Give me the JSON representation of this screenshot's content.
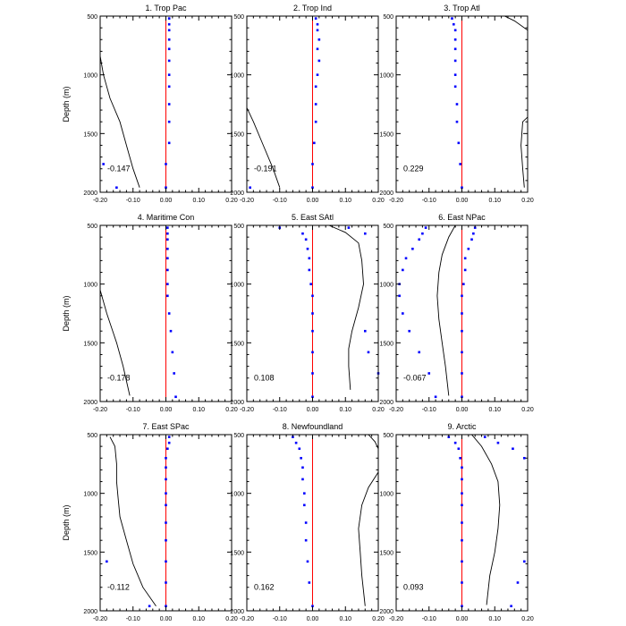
{
  "colors": {
    "zero_line": "#ff0000",
    "dots": "#0000ff",
    "curve": "#000000"
  },
  "shared_axes": {
    "ylabel": "Depth (m)",
    "ylim": [
      2000,
      500
    ],
    "yticks": [
      500,
      1000,
      1500,
      2000
    ],
    "xlim": [
      -0.2,
      0.2
    ],
    "xticks": [
      -0.2,
      -0.1,
      0.0,
      0.1,
      0.2
    ],
    "xtick_labels": [
      "-0.20",
      "-0.10",
      "0.00",
      "0.10",
      "0.20"
    ]
  },
  "chart_data": [
    {
      "type": "scatter",
      "title": "1. Trop Pac",
      "annotation": "-0.147",
      "zero_line": 0,
      "dots": [
        [
          0.01,
          520
        ],
        [
          0.01,
          570
        ],
        [
          0.01,
          620
        ],
        [
          0.01,
          700
        ],
        [
          0.01,
          780
        ],
        [
          0.01,
          880
        ],
        [
          0.01,
          1000
        ],
        [
          0.01,
          1100
        ],
        [
          0.01,
          1250
        ],
        [
          0.01,
          1400
        ],
        [
          0.01,
          1580
        ],
        [
          0.0,
          1760
        ],
        [
          0.0,
          1960
        ],
        [
          -0.19,
          1760
        ],
        [
          -0.15,
          1960
        ]
      ],
      "curve": [
        [
          -0.2,
          840
        ],
        [
          -0.19,
          1000
        ],
        [
          -0.17,
          1200
        ],
        [
          -0.14,
          1400
        ],
        [
          -0.12,
          1600
        ],
        [
          -0.1,
          1800
        ],
        [
          -0.08,
          1960
        ]
      ]
    },
    {
      "type": "scatter",
      "title": "2. Trop Ind",
      "annotation": "-0.191",
      "zero_line": 0,
      "dots": [
        [
          0.01,
          520
        ],
        [
          0.015,
          570
        ],
        [
          0.015,
          620
        ],
        [
          0.02,
          700
        ],
        [
          0.015,
          780
        ],
        [
          0.02,
          880
        ],
        [
          0.015,
          1000
        ],
        [
          0.01,
          1100
        ],
        [
          0.01,
          1250
        ],
        [
          0.01,
          1400
        ],
        [
          0.005,
          1580
        ],
        [
          0.0,
          1760
        ],
        [
          0.0,
          1960
        ],
        [
          -0.19,
          1960
        ]
      ],
      "curve": [
        [
          -0.2,
          1280
        ],
        [
          -0.18,
          1400
        ],
        [
          -0.15,
          1600
        ],
        [
          -0.12,
          1800
        ],
        [
          -0.1,
          1960
        ]
      ]
    },
    {
      "type": "scatter",
      "title": "3. Trop Atl",
      "annotation": "0.229",
      "zero_line": 0,
      "dots": [
        [
          -0.03,
          520
        ],
        [
          -0.025,
          570
        ],
        [
          -0.02,
          620
        ],
        [
          -0.02,
          700
        ],
        [
          -0.02,
          780
        ],
        [
          -0.02,
          880
        ],
        [
          -0.02,
          1000
        ],
        [
          -0.02,
          1100
        ],
        [
          -0.015,
          1250
        ],
        [
          -0.015,
          1400
        ],
        [
          -0.01,
          1580
        ],
        [
          -0.005,
          1760
        ],
        [
          0.0,
          1960
        ]
      ],
      "curve_segments": [
        [
          [
            0.13,
            500
          ],
          [
            0.16,
            540
          ],
          [
            0.2,
            620
          ]
        ],
        [
          [
            0.2,
            1360
          ],
          [
            0.185,
            1400
          ],
          [
            0.18,
            1600
          ],
          [
            0.185,
            1800
          ],
          [
            0.19,
            1960
          ]
        ]
      ]
    },
    {
      "type": "scatter",
      "title": "4. Maritime Con",
      "annotation": "-0.178",
      "zero_line": 0,
      "dots": [
        [
          0.005,
          520
        ],
        [
          0.005,
          570
        ],
        [
          0.005,
          620
        ],
        [
          0.005,
          700
        ],
        [
          0.005,
          780
        ],
        [
          0.005,
          880
        ],
        [
          0.005,
          1000
        ],
        [
          0.005,
          1100
        ],
        [
          0.01,
          1250
        ],
        [
          0.015,
          1400
        ],
        [
          0.02,
          1580
        ],
        [
          0.025,
          1760
        ],
        [
          0.03,
          1960
        ]
      ],
      "curve": [
        [
          -0.2,
          1050
        ],
        [
          -0.18,
          1250
        ],
        [
          -0.15,
          1500
        ],
        [
          -0.13,
          1700
        ],
        [
          -0.11,
          1950
        ]
      ]
    },
    {
      "type": "scatter",
      "title": "5. East SAtl",
      "annotation": "0.108",
      "zero_line": 0,
      "dots": [
        [
          -0.1,
          520
        ],
        [
          -0.03,
          570
        ],
        [
          -0.02,
          620
        ],
        [
          -0.015,
          700
        ],
        [
          -0.01,
          780
        ],
        [
          -0.01,
          880
        ],
        [
          -0.005,
          1000
        ],
        [
          0.0,
          1100
        ],
        [
          0.0,
          1250
        ],
        [
          0.0,
          1400
        ],
        [
          0.0,
          1580
        ],
        [
          0.0,
          1760
        ],
        [
          0.0,
          1960
        ],
        [
          0.11,
          520
        ],
        [
          0.16,
          570
        ],
        [
          0.16,
          1400
        ],
        [
          0.17,
          1580
        ],
        [
          0.2,
          1760
        ]
      ],
      "curve": [
        [
          0.05,
          500
        ],
        [
          0.1,
          560
        ],
        [
          0.14,
          650
        ],
        [
          0.15,
          800
        ],
        [
          0.155,
          1000
        ],
        [
          0.14,
          1200
        ],
        [
          0.12,
          1400
        ],
        [
          0.11,
          1550
        ],
        [
          0.11,
          1700
        ],
        [
          0.115,
          1900
        ]
      ]
    },
    {
      "type": "scatter",
      "title": "6. East NPac",
      "annotation": "-0.067",
      "zero_line": 0,
      "dots": [
        [
          -0.11,
          520
        ],
        [
          -0.12,
          570
        ],
        [
          -0.13,
          620
        ],
        [
          -0.15,
          700
        ],
        [
          -0.17,
          780
        ],
        [
          -0.18,
          880
        ],
        [
          -0.19,
          1000
        ],
        [
          -0.19,
          1100
        ],
        [
          -0.18,
          1250
        ],
        [
          -0.16,
          1400
        ],
        [
          -0.13,
          1580
        ],
        [
          -0.1,
          1760
        ],
        [
          -0.08,
          1960
        ],
        [
          0.04,
          520
        ],
        [
          0.035,
          570
        ],
        [
          0.03,
          620
        ],
        [
          0.02,
          700
        ],
        [
          0.01,
          780
        ],
        [
          0.01,
          880
        ],
        [
          0.005,
          1000
        ],
        [
          0.0,
          1100
        ],
        [
          0.0,
          1250
        ],
        [
          0.0,
          1400
        ],
        [
          0.0,
          1580
        ],
        [
          0.0,
          1760
        ],
        [
          0.0,
          1960
        ]
      ],
      "curve": [
        [
          -0.02,
          500
        ],
        [
          -0.04,
          600
        ],
        [
          -0.06,
          750
        ],
        [
          -0.07,
          900
        ],
        [
          -0.075,
          1100
        ],
        [
          -0.07,
          1300
        ],
        [
          -0.06,
          1500
        ],
        [
          -0.05,
          1700
        ],
        [
          -0.04,
          1950
        ]
      ]
    },
    {
      "type": "scatter",
      "title": "7. East SPac",
      "annotation": "-0.112",
      "zero_line": 0,
      "dots": [
        [
          0.01,
          520
        ],
        [
          0.01,
          570
        ],
        [
          0.005,
          620
        ],
        [
          0.0,
          700
        ],
        [
          0.0,
          780
        ],
        [
          0.0,
          880
        ],
        [
          0.0,
          1000
        ],
        [
          0.0,
          1100
        ],
        [
          0.0,
          1250
        ],
        [
          0.0,
          1400
        ],
        [
          0.0,
          1580
        ],
        [
          0.0,
          1760
        ],
        [
          0.0,
          1960
        ],
        [
          -0.18,
          1580
        ],
        [
          -0.05,
          1960
        ]
      ],
      "curve": [
        [
          -0.17,
          520
        ],
        [
          -0.155,
          600
        ],
        [
          -0.15,
          750
        ],
        [
          -0.15,
          900
        ],
        [
          -0.145,
          1050
        ],
        [
          -0.14,
          1200
        ],
        [
          -0.12,
          1400
        ],
        [
          -0.1,
          1600
        ],
        [
          -0.07,
          1800
        ],
        [
          -0.03,
          1960
        ]
      ]
    },
    {
      "type": "scatter",
      "title": "8. Newfoundland",
      "annotation": "0.162",
      "zero_line": 0,
      "dots": [
        [
          -0.06,
          520
        ],
        [
          -0.05,
          570
        ],
        [
          -0.04,
          620
        ],
        [
          -0.035,
          700
        ],
        [
          -0.03,
          780
        ],
        [
          -0.03,
          880
        ],
        [
          -0.025,
          1000
        ],
        [
          -0.025,
          1100
        ],
        [
          -0.02,
          1250
        ],
        [
          -0.02,
          1400
        ],
        [
          -0.015,
          1580
        ],
        [
          -0.01,
          1760
        ],
        [
          0.0,
          1960
        ]
      ],
      "curve": [
        [
          0.17,
          500
        ],
        [
          0.19,
          560
        ],
        [
          0.2,
          620
        ],
        [
          0.2,
          820
        ],
        [
          0.17,
          950
        ],
        [
          0.15,
          1100
        ],
        [
          0.14,
          1300
        ],
        [
          0.145,
          1500
        ],
        [
          0.15,
          1700
        ],
        [
          0.16,
          1960
        ]
      ]
    },
    {
      "type": "scatter",
      "title": "9. Arctic",
      "annotation": "0.093",
      "zero_line": 0,
      "dots": [
        [
          -0.04,
          520
        ],
        [
          -0.02,
          570
        ],
        [
          -0.01,
          620
        ],
        [
          -0.005,
          700
        ],
        [
          0.0,
          780
        ],
        [
          0.0,
          880
        ],
        [
          0.0,
          1000
        ],
        [
          0.0,
          1100
        ],
        [
          0.0,
          1250
        ],
        [
          0.0,
          1400
        ],
        [
          0.0,
          1580
        ],
        [
          0.0,
          1760
        ],
        [
          0.0,
          1960
        ],
        [
          0.07,
          520
        ],
        [
          0.11,
          570
        ],
        [
          0.155,
          620
        ],
        [
          0.19,
          700
        ],
        [
          0.19,
          1580
        ],
        [
          0.17,
          1760
        ],
        [
          0.15,
          1960
        ]
      ],
      "curve": [
        [
          0.03,
          500
        ],
        [
          0.06,
          600
        ],
        [
          0.09,
          750
        ],
        [
          0.11,
          900
        ],
        [
          0.115,
          1100
        ],
        [
          0.11,
          1300
        ],
        [
          0.1,
          1500
        ],
        [
          0.085,
          1700
        ],
        [
          0.075,
          1950
        ]
      ]
    }
  ]
}
